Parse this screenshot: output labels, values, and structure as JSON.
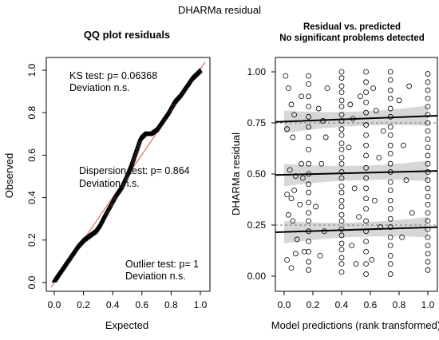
{
  "figure": {
    "title": "DHARMa residual"
  },
  "chart_data": [
    {
      "type": "scatter",
      "title": "QQ plot residuals",
      "xlabel": "Expected",
      "ylabel": "Observed",
      "xlim": [
        0,
        1
      ],
      "ylim": [
        0,
        1
      ],
      "xticks": [
        "0.0",
        "0.2",
        "0.4",
        "0.6",
        "0.8",
        "1.0"
      ],
      "yticks": [
        "0.0",
        "0.2",
        "0.4",
        "0.6",
        "0.8",
        "1.0"
      ],
      "reference_line": [
        [
          0,
          0
        ],
        [
          1,
          1
        ]
      ],
      "qq_curve": [
        [
          0.0,
          0.01
        ],
        [
          0.02,
          0.03
        ],
        [
          0.05,
          0.06
        ],
        [
          0.08,
          0.09
        ],
        [
          0.12,
          0.13
        ],
        [
          0.16,
          0.17
        ],
        [
          0.2,
          0.2
        ],
        [
          0.24,
          0.22
        ],
        [
          0.28,
          0.24
        ],
        [
          0.31,
          0.27
        ],
        [
          0.34,
          0.31
        ],
        [
          0.38,
          0.36
        ],
        [
          0.42,
          0.41
        ],
        [
          0.46,
          0.45
        ],
        [
          0.5,
          0.51
        ],
        [
          0.53,
          0.56
        ],
        [
          0.56,
          0.62
        ],
        [
          0.59,
          0.68
        ],
        [
          0.62,
          0.7
        ],
        [
          0.66,
          0.7
        ],
        [
          0.7,
          0.72
        ],
        [
          0.74,
          0.76
        ],
        [
          0.78,
          0.8
        ],
        [
          0.82,
          0.85
        ],
        [
          0.86,
          0.88
        ],
        [
          0.9,
          0.92
        ],
        [
          0.94,
          0.96
        ],
        [
          0.97,
          0.98
        ],
        [
          1.0,
          1.0
        ]
      ],
      "annotations": [
        {
          "test": "KS test: p= 0.06368",
          "deviation": "Deviation  n.s."
        },
        {
          "test": "Dispersion test: p= 0.864",
          "deviation": "Deviation  n.s."
        },
        {
          "test": "Outlier test: p= 1",
          "deviation": "Deviation  n.s."
        }
      ]
    },
    {
      "type": "scatter",
      "title": "Residual vs. predicted",
      "subtitle": "No significant problems detected",
      "xlabel": "Model predictions (rank transformed)",
      "ylabel": "DHARMa residual",
      "xlim": [
        0,
        1
      ],
      "ylim": [
        0,
        1
      ],
      "xticks": [
        "0.0",
        "0.2",
        "0.4",
        "0.6",
        "0.8",
        "1.0"
      ],
      "yticks": [
        "0.00",
        "0.25",
        "0.50",
        "0.75",
        "1.00"
      ],
      "prediction_columns": [
        0.17,
        0.4,
        0.57,
        0.74,
        1.0
      ],
      "reference_lines": [
        0.25,
        0.75
      ],
      "quantile_fits": [
        {
          "quantile": 0.25,
          "y_start": 0.215,
          "y_end": 0.24
        },
        {
          "quantile": 0.5,
          "y_start": 0.495,
          "y_end": 0.515
        },
        {
          "quantile": 0.75,
          "y_start": 0.755,
          "y_end": 0.785
        }
      ],
      "points": [
        [
          0.01,
          0.98
        ],
        [
          0.03,
          0.92
        ],
        [
          0.05,
          0.84
        ],
        [
          0.07,
          0.79
        ],
        [
          0.02,
          0.72
        ],
        [
          0.06,
          0.68
        ],
        [
          0.04,
          0.52
        ],
        [
          0.08,
          0.49
        ],
        [
          0.02,
          0.4
        ],
        [
          0.05,
          0.38
        ],
        [
          0.07,
          0.42
        ],
        [
          0.03,
          0.3
        ],
        [
          0.06,
          0.27
        ],
        [
          0.09,
          0.18
        ],
        [
          0.02,
          0.08
        ],
        [
          0.05,
          0.04
        ],
        [
          0.08,
          0.11
        ],
        [
          0.12,
          0.55
        ],
        [
          0.13,
          0.48
        ],
        [
          0.11,
          0.35
        ],
        [
          0.14,
          0.12
        ],
        [
          0.12,
          0.88
        ],
        [
          0.17,
          0.98
        ],
        [
          0.17,
          0.94
        ],
        [
          0.17,
          0.88
        ],
        [
          0.17,
          0.83
        ],
        [
          0.17,
          0.78
        ],
        [
          0.17,
          0.73
        ],
        [
          0.17,
          0.68
        ],
        [
          0.17,
          0.62
        ],
        [
          0.17,
          0.55
        ],
        [
          0.17,
          0.5
        ],
        [
          0.17,
          0.45
        ],
        [
          0.17,
          0.41
        ],
        [
          0.17,
          0.36
        ],
        [
          0.17,
          0.31
        ],
        [
          0.17,
          0.27
        ],
        [
          0.17,
          0.22
        ],
        [
          0.17,
          0.17
        ],
        [
          0.17,
          0.12
        ],
        [
          0.17,
          0.07
        ],
        [
          0.17,
          0.03
        ],
        [
          0.24,
          0.82
        ],
        [
          0.27,
          0.76
        ],
        [
          0.29,
          0.68
        ],
        [
          0.26,
          0.55
        ],
        [
          0.22,
          0.34
        ],
        [
          0.28,
          0.22
        ],
        [
          0.25,
          0.1
        ],
        [
          0.3,
          0.92
        ],
        [
          0.4,
          1.0
        ],
        [
          0.4,
          0.97
        ],
        [
          0.4,
          0.93
        ],
        [
          0.4,
          0.9
        ],
        [
          0.4,
          0.86
        ],
        [
          0.4,
          0.83
        ],
        [
          0.4,
          0.79
        ],
        [
          0.4,
          0.76
        ],
        [
          0.4,
          0.72
        ],
        [
          0.4,
          0.69
        ],
        [
          0.4,
          0.65
        ],
        [
          0.4,
          0.62
        ],
        [
          0.4,
          0.58
        ],
        [
          0.4,
          0.55
        ],
        [
          0.4,
          0.51
        ],
        [
          0.4,
          0.48
        ],
        [
          0.4,
          0.44
        ],
        [
          0.4,
          0.41
        ],
        [
          0.4,
          0.37
        ],
        [
          0.4,
          0.34
        ],
        [
          0.4,
          0.3
        ],
        [
          0.4,
          0.27
        ],
        [
          0.4,
          0.23
        ],
        [
          0.4,
          0.2
        ],
        [
          0.4,
          0.16
        ],
        [
          0.4,
          0.13
        ],
        [
          0.4,
          0.09
        ],
        [
          0.4,
          0.06
        ],
        [
          0.4,
          0.02
        ],
        [
          0.46,
          0.84
        ],
        [
          0.48,
          0.77
        ],
        [
          0.45,
          0.63
        ],
        [
          0.49,
          0.43
        ],
        [
          0.47,
          0.15
        ],
        [
          0.5,
          0.06
        ],
        [
          0.53,
          0.88
        ],
        [
          0.52,
          0.29
        ],
        [
          0.57,
          1.0
        ],
        [
          0.57,
          0.95
        ],
        [
          0.57,
          0.9
        ],
        [
          0.57,
          0.85
        ],
        [
          0.57,
          0.8
        ],
        [
          0.57,
          0.74
        ],
        [
          0.57,
          0.69
        ],
        [
          0.57,
          0.64
        ],
        [
          0.57,
          0.59
        ],
        [
          0.57,
          0.53
        ],
        [
          0.57,
          0.48
        ],
        [
          0.57,
          0.43
        ],
        [
          0.57,
          0.38
        ],
        [
          0.57,
          0.33
        ],
        [
          0.57,
          0.27
        ],
        [
          0.57,
          0.22
        ],
        [
          0.57,
          0.17
        ],
        [
          0.57,
          0.12
        ],
        [
          0.57,
          0.06
        ],
        [
          0.57,
          0.01
        ],
        [
          0.62,
          0.92
        ],
        [
          0.64,
          0.81
        ],
        [
          0.66,
          0.58
        ],
        [
          0.63,
          0.37
        ],
        [
          0.67,
          0.24
        ],
        [
          0.61,
          0.08
        ],
        [
          0.69,
          0.71
        ],
        [
          0.74,
          1.0
        ],
        [
          0.74,
          0.96
        ],
        [
          0.74,
          0.91
        ],
        [
          0.74,
          0.87
        ],
        [
          0.74,
          0.82
        ],
        [
          0.74,
          0.78
        ],
        [
          0.74,
          0.73
        ],
        [
          0.74,
          0.69
        ],
        [
          0.74,
          0.64
        ],
        [
          0.74,
          0.6
        ],
        [
          0.74,
          0.55
        ],
        [
          0.74,
          0.51
        ],
        [
          0.74,
          0.46
        ],
        [
          0.74,
          0.42
        ],
        [
          0.74,
          0.37
        ],
        [
          0.74,
          0.33
        ],
        [
          0.74,
          0.28
        ],
        [
          0.74,
          0.24
        ],
        [
          0.74,
          0.19
        ],
        [
          0.74,
          0.15
        ],
        [
          0.74,
          0.1
        ],
        [
          0.74,
          0.06
        ],
        [
          0.74,
          0.01
        ],
        [
          0.8,
          0.86
        ],
        [
          0.83,
          0.64
        ],
        [
          0.85,
          0.47
        ],
        [
          0.82,
          0.19
        ],
        [
          0.87,
          0.93
        ],
        [
          0.89,
          0.31
        ],
        [
          1.0,
          0.99
        ],
        [
          1.0,
          0.95
        ],
        [
          1.0,
          0.91
        ],
        [
          1.0,
          0.87
        ],
        [
          1.0,
          0.83
        ],
        [
          1.0,
          0.79
        ],
        [
          1.0,
          0.75
        ],
        [
          1.0,
          0.71
        ],
        [
          1.0,
          0.67
        ],
        [
          1.0,
          0.63
        ],
        [
          1.0,
          0.59
        ],
        [
          1.0,
          0.55
        ],
        [
          1.0,
          0.51
        ],
        [
          1.0,
          0.47
        ],
        [
          1.0,
          0.43
        ],
        [
          1.0,
          0.39
        ],
        [
          1.0,
          0.35
        ],
        [
          1.0,
          0.31
        ],
        [
          1.0,
          0.27
        ],
        [
          1.0,
          0.23
        ],
        [
          1.0,
          0.19
        ],
        [
          1.0,
          0.15
        ],
        [
          1.0,
          0.11
        ],
        [
          1.0,
          0.07
        ],
        [
          1.0,
          0.03
        ]
      ]
    }
  ],
  "colors": {
    "axis": "#000000",
    "reference_line": "#d9534f",
    "confidence_band": "#d3d3d3",
    "dashed_line": "#777777"
  }
}
